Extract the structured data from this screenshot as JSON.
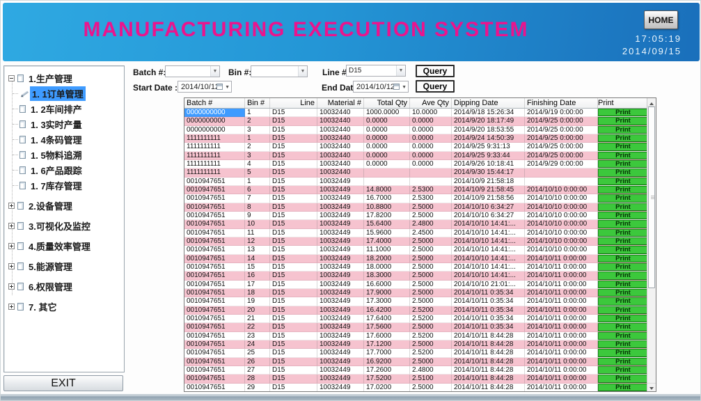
{
  "header": {
    "title": "MANUFACTURING EXECUTION SYSTEM",
    "home_button": "HOME",
    "time": "17:05:19",
    "date": "2014/09/15"
  },
  "sidebar": {
    "items": [
      {
        "label": "1.生产管理",
        "level": 0,
        "expanded": true
      },
      {
        "label": "1. 1订单管理",
        "level": 1,
        "selected": true
      },
      {
        "label": "1. 2车间排产",
        "level": 1
      },
      {
        "label": "1. 3实时产量",
        "level": 1
      },
      {
        "label": "1. 4条码管理",
        "level": 1
      },
      {
        "label": "1. 5物料追溯",
        "level": 1
      },
      {
        "label": "1. 6产品跟踪",
        "level": 1
      },
      {
        "label": "1. 7库存管理",
        "level": 1
      },
      {
        "label": "2.设备管理",
        "level": 0
      },
      {
        "label": "3.可视化及监控",
        "level": 0
      },
      {
        "label": "4.质量效率管理",
        "level": 0
      },
      {
        "label": "5.能源管理",
        "level": 0
      },
      {
        "label": "6.权限管理",
        "level": 0
      },
      {
        "label": "7. 其它",
        "level": 0
      }
    ],
    "exit_button": "EXIT"
  },
  "query": {
    "batch_label": "Batch #:",
    "batch_value": "",
    "bin_label": "Bin #:",
    "bin_value": "",
    "line_label": "Line #:",
    "line_value": "D15",
    "start_date_label": "Start Date :",
    "start_date_value": "2014/10/12",
    "end_date_label": "End Date:",
    "end_date_value": "2014/10/12",
    "query_button": "Query"
  },
  "table": {
    "columns": [
      "Batch #",
      "Bin #",
      "Line",
      "Material #",
      "Total Qty",
      "Ave Qty",
      "Dipping Date",
      "Finishing Date",
      "Print"
    ],
    "print_label": "Print",
    "selected_cell": {
      "row": 0,
      "col": 0
    },
    "rows": [
      [
        "0000000000",
        "1",
        "D15",
        "10032440",
        "1000.0000",
        "10.0000",
        "2014/9/18 15:26:34",
        "2014/9/19 0:00:00"
      ],
      [
        "0000000000",
        "2",
        "D15",
        "10032440",
        "0.0000",
        "0.0000",
        "2014/9/20 18:17:49",
        "2014/9/25 0:00:00"
      ],
      [
        "0000000000",
        "3",
        "D15",
        "10032440",
        "0.0000",
        "0.0000",
        "2014/9/20 18:53:55",
        "2014/9/25 0:00:00"
      ],
      [
        "1111111111",
        "1",
        "D15",
        "10032440",
        "0.0000",
        "0.0000",
        "2014/9/24 14:50:39",
        "2014/9/25 0:00:00"
      ],
      [
        "1111111111",
        "2",
        "D15",
        "10032440",
        "0.0000",
        "0.0000",
        "2014/9/25 9:31:13",
        "2014/9/25 0:00:00"
      ],
      [
        "1111111111",
        "3",
        "D15",
        "10032440",
        "0.0000",
        "0.0000",
        "2014/9/25 9:33:44",
        "2014/9/25 0:00:00"
      ],
      [
        "1111111111",
        "4",
        "D15",
        "10032440",
        "0.0000",
        "0.0000",
        "2014/9/26 10:18:41",
        "2014/9/29 0:00:00"
      ],
      [
        "1111111111",
        "5",
        "D15",
        "10032440",
        "",
        "",
        "2014/9/30 15:44:17",
        ""
      ],
      [
        "0010947651",
        "1",
        "D15",
        "10032449",
        "",
        "",
        "2014/10/9 21:58:18",
        ""
      ],
      [
        "0010947651",
        "6",
        "D15",
        "10032449",
        "14.8000",
        "2.5300",
        "2014/10/9 21:58:45",
        "2014/10/10 0:00:00"
      ],
      [
        "0010947651",
        "7",
        "D15",
        "10032449",
        "16.7000",
        "2.5300",
        "2014/10/9 21:58:56",
        "2014/10/10 0:00:00"
      ],
      [
        "0010947651",
        "8",
        "D15",
        "10032449",
        "10.8800",
        "2.5000",
        "2014/10/10 6:34:27",
        "2014/10/10 0:00:00"
      ],
      [
        "0010947651",
        "9",
        "D15",
        "10032449",
        "17.8200",
        "2.5000",
        "2014/10/10 6:34:27",
        "2014/10/10 0:00:00"
      ],
      [
        "0010947651",
        "10",
        "D15",
        "10032449",
        "15.6400",
        "2.4800",
        "2014/10/10 14:41:...",
        "2014/10/10 0:00:00"
      ],
      [
        "0010947651",
        "11",
        "D15",
        "10032449",
        "15.9600",
        "2.4500",
        "2014/10/10 14:41:...",
        "2014/10/10 0:00:00"
      ],
      [
        "0010947651",
        "12",
        "D15",
        "10032449",
        "17.4000",
        "2.5000",
        "2014/10/10 14:41:...",
        "2014/10/10 0:00:00"
      ],
      [
        "0010947651",
        "13",
        "D15",
        "10032449",
        "11.1000",
        "2.5000",
        "2014/10/10 14:41:...",
        "2014/10/10 0:00:00"
      ],
      [
        "0010947651",
        "14",
        "D15",
        "10032449",
        "18.2000",
        "2.5000",
        "2014/10/10 14:41:...",
        "2014/10/11 0:00:00"
      ],
      [
        "0010947651",
        "15",
        "D15",
        "10032449",
        "18.0000",
        "2.5000",
        "2014/10/10 14:41:...",
        "2014/10/11 0:00:00"
      ],
      [
        "0010947651",
        "16",
        "D15",
        "10032449",
        "18.3000",
        "2.5000",
        "2014/10/10 14:41:...",
        "2014/10/11 0:00:00"
      ],
      [
        "0010947651",
        "17",
        "D15",
        "10032449",
        "16.6000",
        "2.5000",
        "2014/10/10 21:01:...",
        "2014/10/11 0:00:00"
      ],
      [
        "0010947651",
        "18",
        "D15",
        "10032449",
        "17.9000",
        "2.5000",
        "2014/10/11 0:35:34",
        "2014/10/11 0:00:00"
      ],
      [
        "0010947651",
        "19",
        "D15",
        "10032449",
        "17.3000",
        "2.5000",
        "2014/10/11 0:35:34",
        "2014/10/11 0:00:00"
      ],
      [
        "0010947651",
        "20",
        "D15",
        "10032449",
        "16.4200",
        "2.5200",
        "2014/10/11 0:35:34",
        "2014/10/11 0:00:00"
      ],
      [
        "0010947651",
        "21",
        "D15",
        "10032449",
        "17.6400",
        "2.5200",
        "2014/10/11 0:35:34",
        "2014/10/11 0:00:00"
      ],
      [
        "0010947651",
        "22",
        "D15",
        "10032449",
        "17.5600",
        "2.5000",
        "2014/10/11 0:35:34",
        "2014/10/11 0:00:00"
      ],
      [
        "0010947651",
        "23",
        "D15",
        "10032449",
        "17.6000",
        "2.5200",
        "2014/10/11 8:44:28",
        "2014/10/11 0:00:00"
      ],
      [
        "0010947651",
        "24",
        "D15",
        "10032449",
        "17.1200",
        "2.5000",
        "2014/10/11 8:44:28",
        "2014/10/11 0:00:00"
      ],
      [
        "0010947651",
        "25",
        "D15",
        "10032449",
        "17.7000",
        "2.5200",
        "2014/10/11 8:44:28",
        "2014/10/11 0:00:00"
      ],
      [
        "0010947651",
        "26",
        "D15",
        "10032449",
        "16.9200",
        "2.5000",
        "2014/10/11 8:44:28",
        "2014/10/11 0:00:00"
      ],
      [
        "0010947651",
        "27",
        "D15",
        "10032449",
        "17.2600",
        "2.4800",
        "2014/10/11 8:44:28",
        "2014/10/11 0:00:00"
      ],
      [
        "0010947651",
        "28",
        "D15",
        "10032449",
        "17.5200",
        "2.5100",
        "2014/10/11 8:44:28",
        "2014/10/11 0:00:00"
      ],
      [
        "0010947651",
        "29",
        "D15",
        "10032449",
        "17.0200",
        "2.5000",
        "2014/10/11 8:44:28",
        "2014/10/11 0:00:00"
      ]
    ]
  },
  "colors": {
    "header_blue_start": "#2FA9E2",
    "header_blue_end": "#1A6FBB",
    "title_magenta": "#EB148D",
    "row_pink": "#F6C3CF",
    "print_green": "#3CC83C",
    "selected_blue": "#3E9BFF"
  }
}
